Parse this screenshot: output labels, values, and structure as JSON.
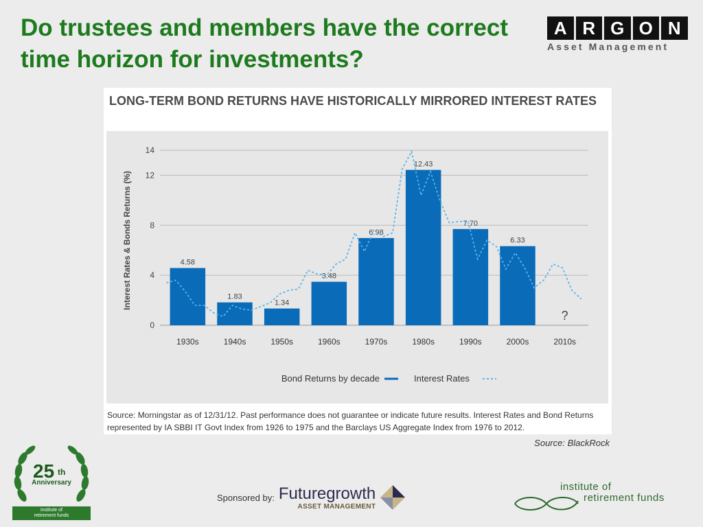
{
  "slide": {
    "title": "Do trustees and members have the correct time horizon for investments?"
  },
  "logo": {
    "letters": [
      "A",
      "R",
      "G",
      "O",
      "N"
    ],
    "subtitle": "Asset Management"
  },
  "chart_data": {
    "type": "bar",
    "title": "LONG-TERM BOND RETURNS HAVE HISTORICALLY MIRRORED INTEREST RATES",
    "xlabel": "",
    "ylabel": "Interest Rates & Bonds Returns (%)",
    "ylim": [
      0,
      14
    ],
    "yticks": [
      0,
      4,
      8,
      12,
      14
    ],
    "grid": true,
    "legend_position": "bottom",
    "categories": [
      "1930s",
      "1940s",
      "1950s",
      "1960s",
      "1970s",
      "1980s",
      "1990s",
      "2000s",
      "2010s"
    ],
    "series": [
      {
        "name": "Bond Returns by decade",
        "type": "bar",
        "color": "#0a6bb8",
        "values": [
          4.58,
          1.83,
          1.34,
          3.48,
          6.98,
          12.43,
          7.7,
          6.33,
          null
        ],
        "labels": [
          "4.58",
          "1.83",
          "1.34",
          "3.48",
          "6.98",
          "12.43",
          "7.70",
          "6.33",
          "?"
        ]
      },
      {
        "name": "Interest Rates",
        "type": "line",
        "style": "dashed",
        "color": "#5ab4e6",
        "x": [
          0.0,
          0.2,
          0.4,
          0.6,
          0.8,
          1.0,
          1.2,
          1.4,
          1.6,
          1.8,
          2.0,
          2.2,
          2.4,
          2.6,
          2.8,
          3.0,
          3.2,
          3.4,
          3.6,
          3.8,
          4.0,
          4.2,
          4.4,
          4.6,
          4.8,
          5.0,
          5.2,
          5.4,
          5.6,
          5.8,
          6.0,
          6.2,
          6.4,
          6.6,
          6.8,
          7.0,
          7.2,
          7.4,
          7.6,
          7.8,
          8.0,
          8.2,
          8.4,
          8.6,
          8.8
        ],
        "values": [
          3.4,
          3.6,
          2.7,
          1.6,
          1.6,
          1.0,
          0.7,
          1.6,
          1.3,
          1.2,
          1.5,
          1.8,
          2.5,
          2.8,
          2.9,
          4.4,
          4.1,
          4.0,
          4.9,
          5.3,
          7.4,
          5.9,
          7.6,
          7.1,
          7.4,
          12.5,
          13.9,
          10.4,
          12.3,
          10.0,
          8.2,
          8.3,
          8.3,
          5.3,
          6.8,
          6.3,
          4.5,
          5.8,
          4.6,
          3.0,
          3.6,
          4.9,
          4.6,
          2.8,
          2.1
        ]
      }
    ],
    "source_note": "Source: Morningstar as of 12/31/12. Past performance does not guarantee or indicate future results. Interest Rates and Bond Returns represented by IA SBBI IT Govt Index from 1926 to 1975 and the Barclays US Aggregate Index from 1976 to 2012."
  },
  "source_credit": "Source: BlackRock",
  "footer": {
    "anniversary_number": "25",
    "anniversary_suffix": "th",
    "anniversary_word": "Anniversary",
    "anniversary_badge_line1": "institute of",
    "anniversary_badge_line2": "retirement funds",
    "sponsor_label": "Sponsored by:",
    "sponsor_name": "Futuregrowth",
    "sponsor_sub": "ASSET MANAGEMENT",
    "irf_line1": "institute of",
    "irf_line2": "retirement funds"
  },
  "colors": {
    "title_green": "#1d7a1d",
    "bar_blue": "#0a6bb8",
    "line_blue": "#5ab4e6"
  }
}
